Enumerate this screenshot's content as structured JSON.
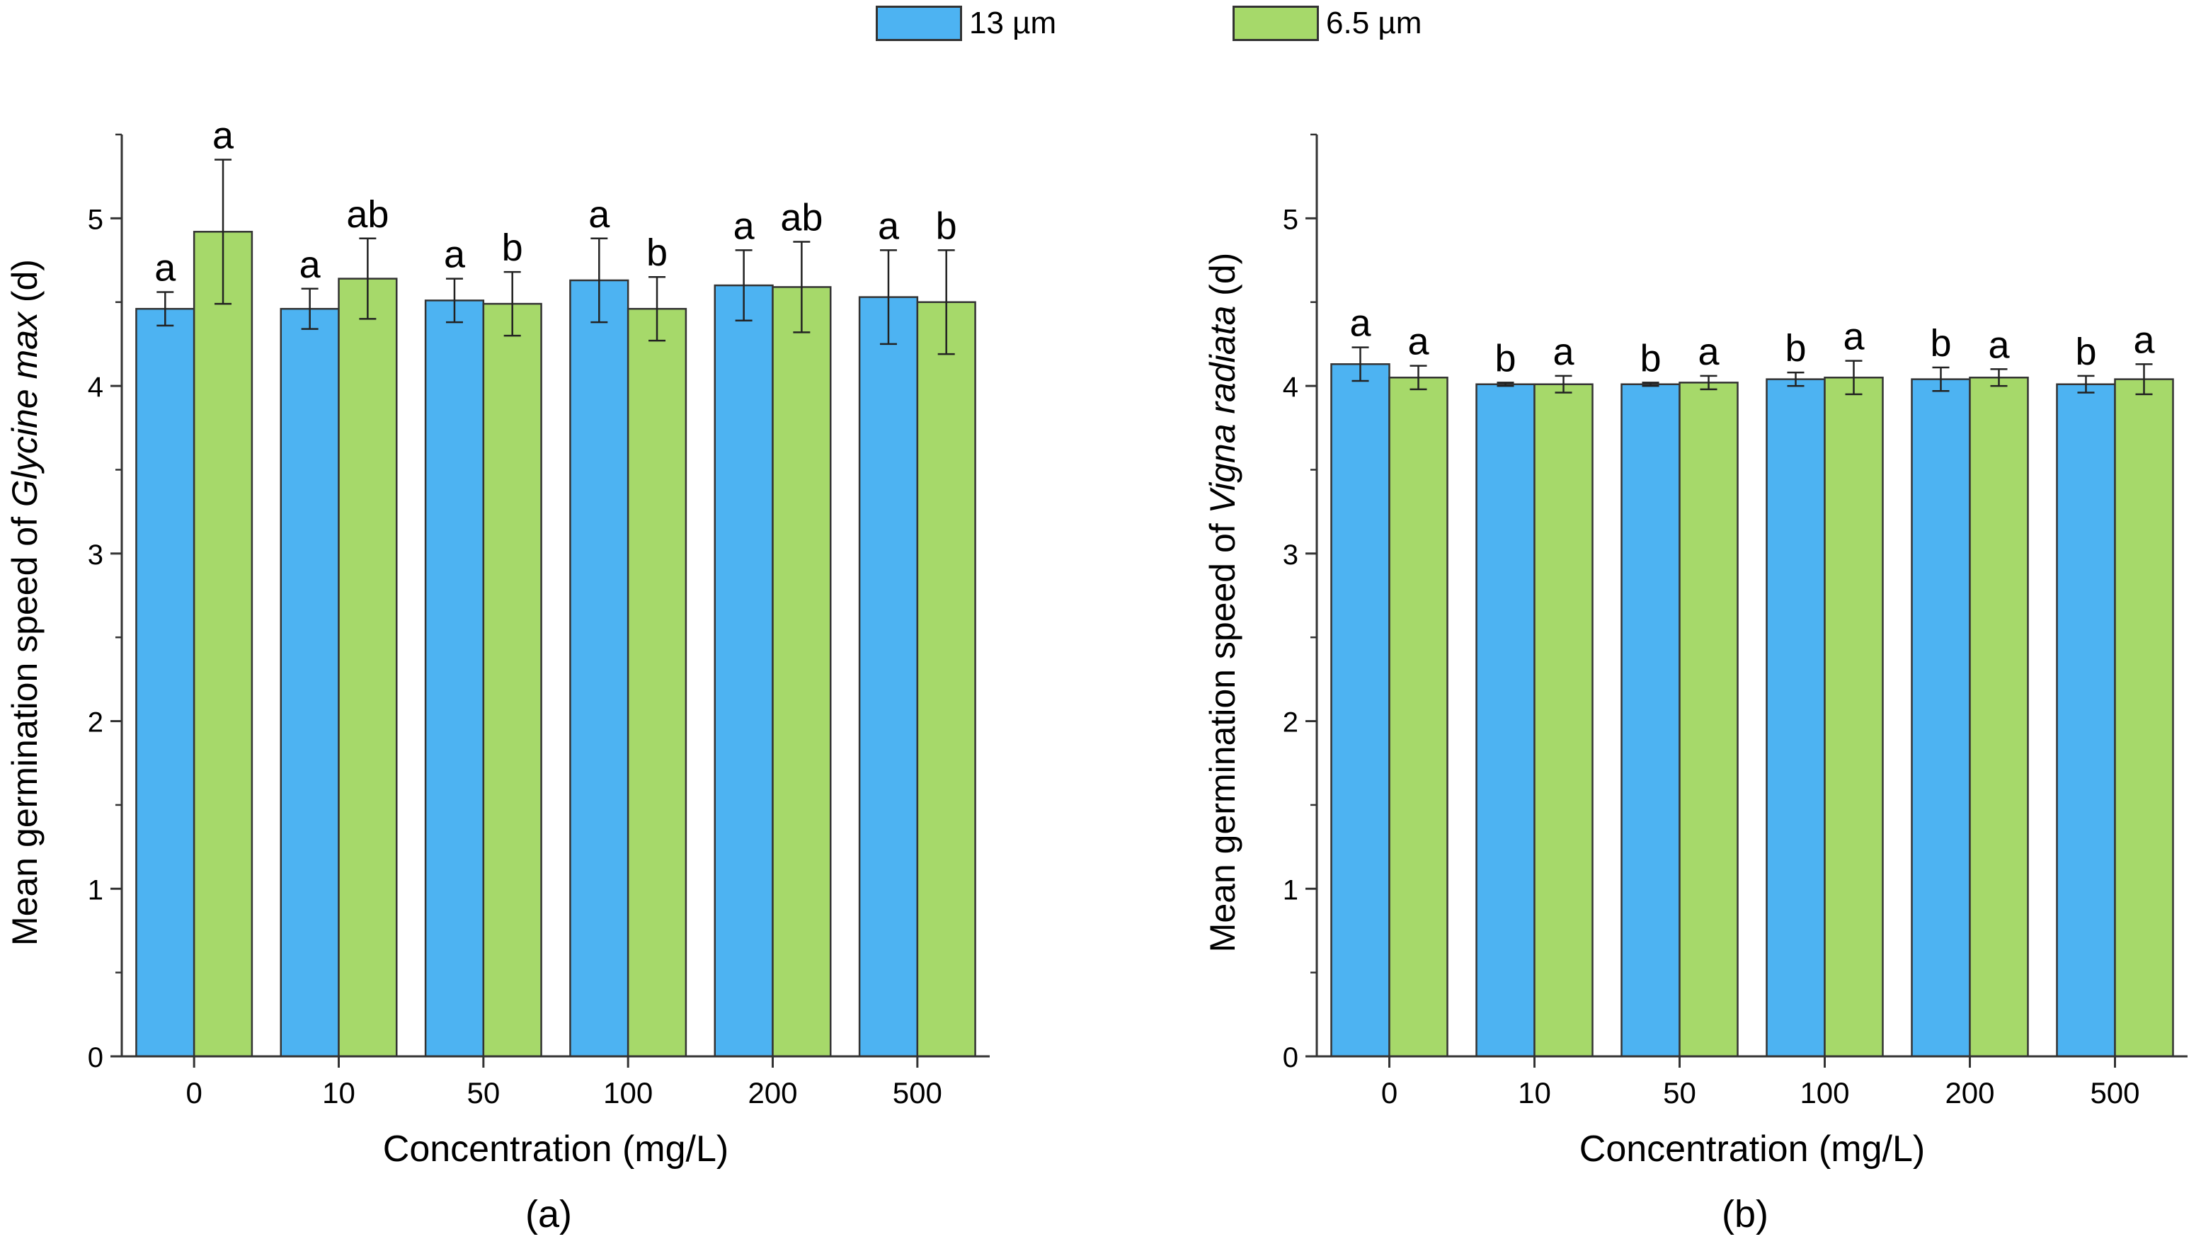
{
  "legend": {
    "items": [
      {
        "label": "13 µm",
        "color": "#4db3f2"
      },
      {
        "label": "6.5 µm",
        "color": "#a6d96a"
      }
    ]
  },
  "chart_data": [
    {
      "type": "bar",
      "panel_label": "(a)",
      "title": "",
      "xlabel": "Concentration (mg/L)",
      "ylabel_prefix": "Mean germination speed of ",
      "ylabel_species": "Glycine max",
      "ylabel_suffix": " (d)",
      "ylim": [
        0,
        5.5
      ],
      "yticks": [
        0,
        1,
        2,
        3,
        4,
        5
      ],
      "categories": [
        "0",
        "10",
        "50",
        "100",
        "200",
        "500"
      ],
      "series": [
        {
          "name": "13 µm",
          "color": "#4db3f2",
          "values": [
            4.46,
            4.46,
            4.51,
            4.63,
            4.6,
            4.53
          ],
          "errors": [
            0.1,
            0.12,
            0.13,
            0.25,
            0.21,
            0.28
          ],
          "letters": [
            "a",
            "a",
            "a",
            "a",
            "a",
            "a"
          ]
        },
        {
          "name": "6.5 µm",
          "color": "#a6d96a",
          "values": [
            4.92,
            4.64,
            4.49,
            4.46,
            4.59,
            4.5
          ],
          "errors": [
            0.43,
            0.24,
            0.19,
            0.19,
            0.27,
            0.31
          ],
          "letters": [
            "a",
            "ab",
            "b",
            "b",
            "ab",
            "b"
          ]
        }
      ]
    },
    {
      "type": "bar",
      "panel_label": "(b)",
      "title": "",
      "xlabel": "Concentration (mg/L)",
      "ylabel_prefix": "Mean germination speed of ",
      "ylabel_species": "Vigna radiata",
      "ylabel_suffix": " (d)",
      "ylim": [
        0,
        5.5
      ],
      "yticks": [
        0,
        1,
        2,
        3,
        4,
        5
      ],
      "categories": [
        "0",
        "10",
        "50",
        "100",
        "200",
        "500"
      ],
      "series": [
        {
          "name": "13 µm",
          "color": "#4db3f2",
          "values": [
            4.13,
            4.01,
            4.01,
            4.04,
            4.04,
            4.01
          ],
          "errors": [
            0.1,
            0.01,
            0.01,
            0.04,
            0.07,
            0.05
          ],
          "letters": [
            "a",
            "b",
            "b",
            "b",
            "b",
            "b"
          ]
        },
        {
          "name": "6.5 µm",
          "color": "#a6d96a",
          "values": [
            4.05,
            4.01,
            4.02,
            4.05,
            4.05,
            4.04
          ],
          "errors": [
            0.07,
            0.05,
            0.04,
            0.1,
            0.05,
            0.09
          ],
          "letters": [
            "a",
            "a",
            "a",
            "a",
            "a",
            "a"
          ]
        }
      ]
    }
  ]
}
